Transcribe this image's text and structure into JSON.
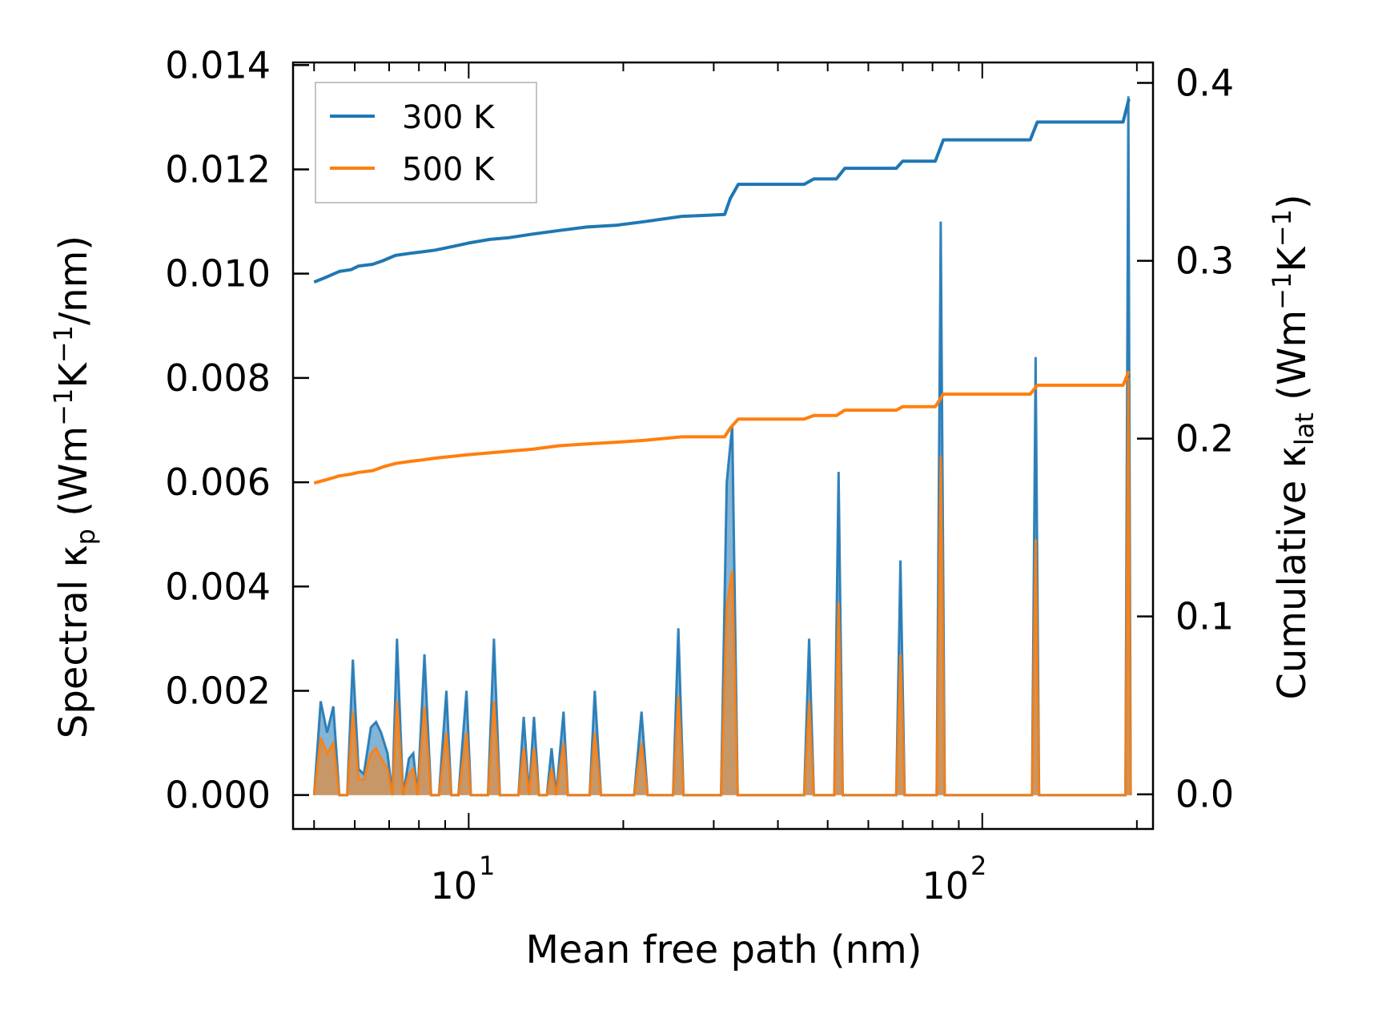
{
  "chart_data": {
    "type": "line",
    "title": "",
    "xlabel": "Mean free path (nm)",
    "xscale": "log",
    "xlim": [
      4.55,
      215
    ],
    "x_tick_labels": [
      "10",
      "1",
      "10",
      "2"
    ],
    "ylabel_left": {
      "base": "Spectral κ",
      "sub": "p",
      "units_open": " (Wm",
      "exp1": "−1",
      "mid": "K",
      "exp2": "−1",
      "units_close": "/nm)"
    },
    "ylabel_right": {
      "base": "Cumulative κ",
      "sub": "lat",
      "units_open": " (Wm",
      "exp1": "−1",
      "mid": "K",
      "exp2": "−1",
      "units_close": ")"
    },
    "ylim_left": [
      -0.00065,
      0.01405
    ],
    "ylim_right": [
      -0.0195,
      0.4115
    ],
    "yticks_left": [
      "0.000",
      "0.002",
      "0.004",
      "0.006",
      "0.008",
      "0.010",
      "0.012",
      "0.014"
    ],
    "yticks_right": [
      "0.0",
      "0.1",
      "0.2",
      "0.3",
      "0.4"
    ],
    "legend": {
      "position": "top-left",
      "entries": [
        "300 K",
        "500 K"
      ]
    },
    "colors": {
      "300 K": "#1f77b4",
      "500 K": "#ff7f0e"
    },
    "series": [
      {
        "name": "300 K",
        "axis": "right",
        "kind": "cumulative",
        "points": [
          [
            5.0,
            0.288
          ],
          [
            5.3,
            0.291
          ],
          [
            5.6,
            0.294
          ],
          [
            5.9,
            0.295
          ],
          [
            6.1,
            0.297
          ],
          [
            6.5,
            0.298
          ],
          [
            6.8,
            0.3
          ],
          [
            7.2,
            0.303
          ],
          [
            7.6,
            0.304
          ],
          [
            8.1,
            0.305
          ],
          [
            8.6,
            0.306
          ],
          [
            9.3,
            0.308
          ],
          [
            10.0,
            0.31
          ],
          [
            11.0,
            0.312
          ],
          [
            12.0,
            0.313
          ],
          [
            13.3,
            0.315
          ],
          [
            15.0,
            0.317
          ],
          [
            17.0,
            0.319
          ],
          [
            19.4,
            0.32
          ],
          [
            22.0,
            0.322
          ],
          [
            26.0,
            0.325
          ],
          [
            31.5,
            0.326
          ],
          [
            32.3,
            0.335
          ],
          [
            33.5,
            0.343
          ],
          [
            38.0,
            0.343
          ],
          [
            45.0,
            0.343
          ],
          [
            47.0,
            0.346
          ],
          [
            52.0,
            0.346
          ],
          [
            54.0,
            0.352
          ],
          [
            68.0,
            0.352
          ],
          [
            70.0,
            0.356
          ],
          [
            81.0,
            0.356
          ],
          [
            84.0,
            0.368
          ],
          [
            124.0,
            0.368
          ],
          [
            128.0,
            0.378
          ],
          [
            188.0,
            0.378
          ],
          [
            193.0,
            0.391
          ]
        ]
      },
      {
        "name": "500 K",
        "axis": "right",
        "kind": "cumulative",
        "points": [
          [
            5.0,
            0.175
          ],
          [
            5.3,
            0.177
          ],
          [
            5.6,
            0.179
          ],
          [
            5.9,
            0.18
          ],
          [
            6.1,
            0.181
          ],
          [
            6.5,
            0.182
          ],
          [
            6.8,
            0.184
          ],
          [
            7.2,
            0.186
          ],
          [
            7.6,
            0.187
          ],
          [
            8.1,
            0.188
          ],
          [
            8.6,
            0.189
          ],
          [
            9.3,
            0.19
          ],
          [
            10.0,
            0.191
          ],
          [
            11.0,
            0.192
          ],
          [
            12.0,
            0.193
          ],
          [
            13.3,
            0.194
          ],
          [
            15.0,
            0.196
          ],
          [
            17.0,
            0.197
          ],
          [
            19.4,
            0.198
          ],
          [
            22.0,
            0.199
          ],
          [
            26.0,
            0.201
          ],
          [
            31.5,
            0.201
          ],
          [
            32.3,
            0.206
          ],
          [
            33.5,
            0.211
          ],
          [
            38.0,
            0.211
          ],
          [
            45.0,
            0.211
          ],
          [
            47.0,
            0.213
          ],
          [
            52.0,
            0.213
          ],
          [
            54.0,
            0.216
          ],
          [
            68.0,
            0.216
          ],
          [
            70.0,
            0.218
          ],
          [
            81.0,
            0.218
          ],
          [
            84.0,
            0.225
          ],
          [
            124.0,
            0.225
          ],
          [
            128.0,
            0.23
          ],
          [
            188.0,
            0.23
          ],
          [
            193.0,
            0.238
          ]
        ]
      },
      {
        "name": "300 K spectral",
        "axis": "left",
        "kind": "spectral",
        "points": [
          [
            5.0,
            0.0
          ],
          [
            5.15,
            0.0018
          ],
          [
            5.3,
            0.0012
          ],
          [
            5.45,
            0.0017
          ],
          [
            5.6,
            0.0
          ],
          [
            5.8,
            0.0
          ],
          [
            5.95,
            0.0026
          ],
          [
            6.1,
            0.0005
          ],
          [
            6.25,
            0.0004
          ],
          [
            6.45,
            0.0013
          ],
          [
            6.6,
            0.0014
          ],
          [
            6.75,
            0.0012
          ],
          [
            6.95,
            0.0008
          ],
          [
            7.1,
            0.0
          ],
          [
            7.25,
            0.003
          ],
          [
            7.45,
            0.0
          ],
          [
            7.65,
            0.0007
          ],
          [
            7.8,
            0.0008
          ],
          [
            7.95,
            0.0
          ],
          [
            8.2,
            0.0027
          ],
          [
            8.45,
            0.0
          ],
          [
            8.75,
            0.0
          ],
          [
            9.05,
            0.002
          ],
          [
            9.25,
            0.0
          ],
          [
            9.55,
            0.0
          ],
          [
            9.9,
            0.002
          ],
          [
            10.1,
            0.0
          ],
          [
            10.9,
            0.0
          ],
          [
            11.2,
            0.003
          ],
          [
            11.5,
            0.0
          ],
          [
            12.5,
            0.0
          ],
          [
            12.8,
            0.0015
          ],
          [
            13.1,
            0.0
          ],
          [
            13.4,
            0.0015
          ],
          [
            13.7,
            0.0
          ],
          [
            14.2,
            0.0
          ],
          [
            14.5,
            0.0009
          ],
          [
            14.8,
            0.0
          ],
          [
            15.3,
            0.0016
          ],
          [
            15.6,
            0.0
          ],
          [
            16.4,
            0.0
          ],
          [
            17.2,
            0.0
          ],
          [
            17.6,
            0.002
          ],
          [
            18.1,
            0.0
          ],
          [
            21.0,
            0.0
          ],
          [
            21.7,
            0.0016
          ],
          [
            22.3,
            0.0
          ],
          [
            25.0,
            0.0
          ],
          [
            25.6,
            0.0032
          ],
          [
            26.2,
            0.0
          ],
          [
            31.0,
            0.0
          ],
          [
            31.8,
            0.006
          ],
          [
            32.6,
            0.0071
          ],
          [
            33.4,
            0.0
          ],
          [
            45.0,
            0.0
          ],
          [
            46.0,
            0.003
          ],
          [
            47.0,
            0.0
          ],
          [
            51.5,
            0.0
          ],
          [
            52.5,
            0.0062
          ],
          [
            53.5,
            0.0
          ],
          [
            68.0,
            0.0
          ],
          [
            69.3,
            0.0045
          ],
          [
            70.6,
            0.0
          ],
          [
            81.5,
            0.0
          ],
          [
            83.0,
            0.011
          ],
          [
            84.5,
            0.0
          ],
          [
            125.0,
            0.0
          ],
          [
            127.0,
            0.0084
          ],
          [
            129.0,
            0.0
          ],
          [
            190.0,
            0.0
          ],
          [
            192.5,
            0.0134
          ],
          [
            194.5,
            0.0
          ]
        ]
      },
      {
        "name": "500 K spectral",
        "axis": "left",
        "kind": "spectral",
        "points": [
          [
            5.0,
            0.0
          ],
          [
            5.15,
            0.0011
          ],
          [
            5.3,
            0.0008
          ],
          [
            5.45,
            0.001
          ],
          [
            5.6,
            0.0
          ],
          [
            5.8,
            0.0
          ],
          [
            5.95,
            0.0016
          ],
          [
            6.1,
            0.0003
          ],
          [
            6.25,
            0.0003
          ],
          [
            6.45,
            0.0008
          ],
          [
            6.6,
            0.0009
          ],
          [
            6.75,
            0.0007
          ],
          [
            6.95,
            0.0005
          ],
          [
            7.1,
            0.0
          ],
          [
            7.25,
            0.0018
          ],
          [
            7.45,
            0.0
          ],
          [
            7.65,
            0.0004
          ],
          [
            7.8,
            0.0005
          ],
          [
            7.95,
            0.0
          ],
          [
            8.2,
            0.0017
          ],
          [
            8.45,
            0.0
          ],
          [
            8.75,
            0.0
          ],
          [
            9.05,
            0.0012
          ],
          [
            9.25,
            0.0
          ],
          [
            9.55,
            0.0
          ],
          [
            9.9,
            0.0012
          ],
          [
            10.1,
            0.0
          ],
          [
            10.9,
            0.0
          ],
          [
            11.2,
            0.0018
          ],
          [
            11.5,
            0.0
          ],
          [
            12.5,
            0.0
          ],
          [
            12.8,
            0.0009
          ],
          [
            13.1,
            0.0
          ],
          [
            13.4,
            0.0009
          ],
          [
            13.7,
            0.0
          ],
          [
            14.2,
            0.0
          ],
          [
            14.5,
            0.0005
          ],
          [
            14.8,
            0.0
          ],
          [
            15.3,
            0.001
          ],
          [
            15.6,
            0.0
          ],
          [
            16.4,
            0.0
          ],
          [
            17.2,
            0.0
          ],
          [
            17.6,
            0.0012
          ],
          [
            18.1,
            0.0
          ],
          [
            21.0,
            0.0
          ],
          [
            21.7,
            0.001
          ],
          [
            22.3,
            0.0
          ],
          [
            25.0,
            0.0
          ],
          [
            25.6,
            0.0019
          ],
          [
            26.2,
            0.0
          ],
          [
            31.0,
            0.0
          ],
          [
            31.8,
            0.0036
          ],
          [
            32.6,
            0.0043
          ],
          [
            33.4,
            0.0
          ],
          [
            45.0,
            0.0
          ],
          [
            46.0,
            0.0018
          ],
          [
            47.0,
            0.0
          ],
          [
            51.5,
            0.0
          ],
          [
            52.5,
            0.0037
          ],
          [
            53.5,
            0.0
          ],
          [
            68.0,
            0.0
          ],
          [
            69.3,
            0.0027
          ],
          [
            70.6,
            0.0
          ],
          [
            81.5,
            0.0
          ],
          [
            83.0,
            0.0065
          ],
          [
            84.5,
            0.0
          ],
          [
            125.0,
            0.0
          ],
          [
            127.0,
            0.0049
          ],
          [
            129.0,
            0.0
          ],
          [
            190.0,
            0.0
          ],
          [
            192.5,
            0.008
          ],
          [
            194.5,
            0.0
          ]
        ]
      }
    ]
  }
}
